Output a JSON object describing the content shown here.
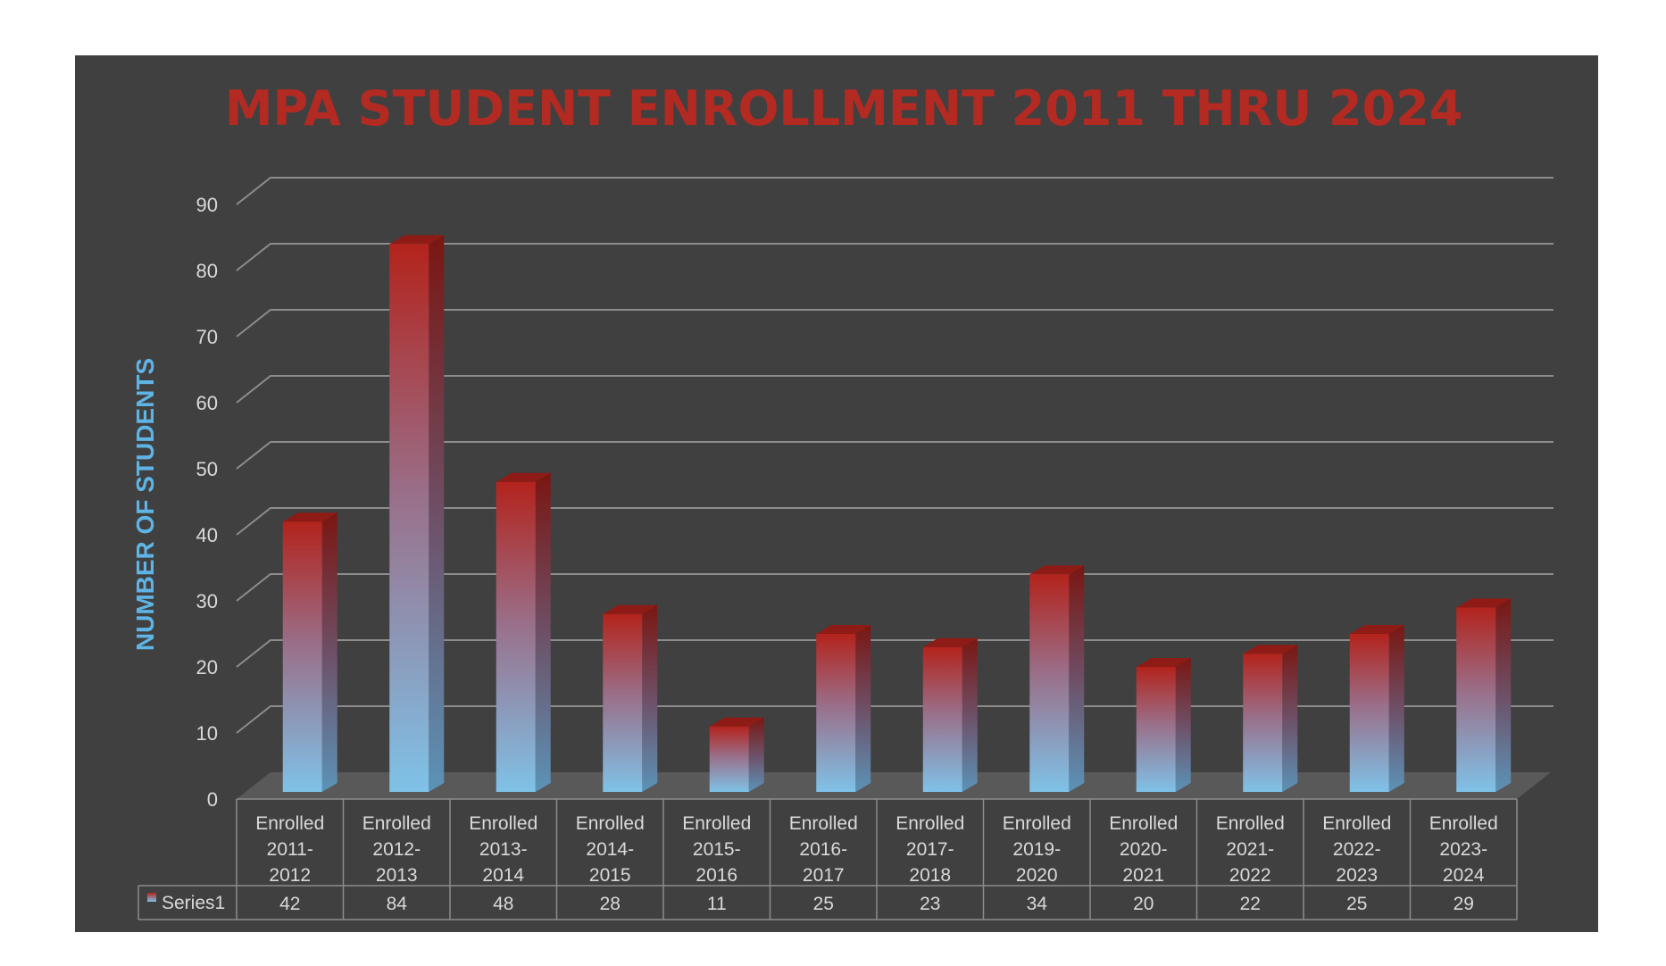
{
  "chart_data": {
    "type": "bar",
    "title": "MPA STUDENT ENROLLMENT 2011 THRU 2024",
    "ylabel": "NUMBER OF STUDENTS",
    "ylim": [
      0,
      90
    ],
    "yticks": [
      "0",
      "10",
      "20",
      "30",
      "40",
      "50",
      "60",
      "70",
      "80",
      "90"
    ],
    "grid": true,
    "legend": "data-table",
    "categories": [
      [
        "Enrolled",
        "2011-",
        "2012"
      ],
      [
        "Enrolled",
        "2012-",
        "2013"
      ],
      [
        "Enrolled",
        "2013-",
        "2014"
      ],
      [
        "Enrolled",
        "2014-",
        "2015"
      ],
      [
        "Enrolled",
        "2015-",
        "2016"
      ],
      [
        "Enrolled",
        "2016-",
        "2017"
      ],
      [
        "Enrolled",
        "2017-",
        "2018"
      ],
      [
        "Enrolled",
        "2019-",
        "2020"
      ],
      [
        "Enrolled",
        "2020-",
        "2021"
      ],
      [
        "Enrolled",
        "2021-",
        "2022"
      ],
      [
        "Enrolled",
        "2022-",
        "2023"
      ],
      [
        "Enrolled",
        "2023-",
        "2024"
      ]
    ],
    "series": [
      {
        "name": "Series1",
        "values": [
          42,
          84,
          48,
          28,
          11,
          25,
          23,
          34,
          20,
          22,
          25,
          29
        ]
      }
    ],
    "colors": {
      "bar_top": "#b3231c",
      "bar_bottom": "#7fc2e8",
      "title": "#b22a22",
      "ylabel": "#5fb4e6",
      "background": "#404040"
    }
  }
}
